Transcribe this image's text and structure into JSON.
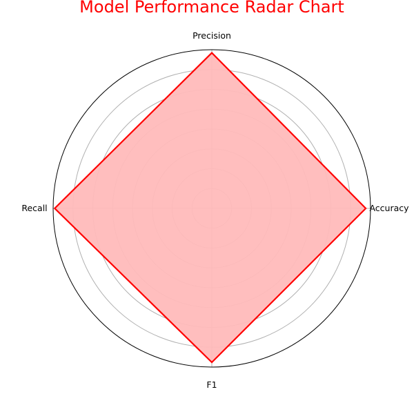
{
  "chart_data": {
    "type": "radar",
    "title": "Model Performance Radar Chart",
    "axes": [
      "Accuracy",
      "Precision",
      "Recall",
      "F1"
    ],
    "series": [
      {
        "values": [
          0.97,
          0.98,
          0.99,
          0.97
        ]
      }
    ],
    "rlim": [
      0,
      1
    ],
    "radial_gridlines": [
      0.125,
      0.25,
      0.375,
      0.5,
      0.625,
      0.75,
      0.875
    ],
    "grid": true,
    "legend": "none"
  },
  "colors": {
    "title": "#ff0000",
    "series_line": "#ff0000",
    "series_fill": "#ffbbbb",
    "grid": "#b0b0b0",
    "outer_ring": "#000000"
  }
}
